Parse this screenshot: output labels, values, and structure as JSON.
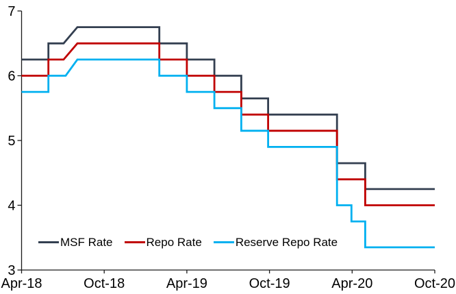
{
  "chart_data": {
    "type": "line",
    "title": "",
    "xlabel": "",
    "ylabel": "",
    "grid": false,
    "legend_position": "bottom-left-inside",
    "axis_color": "#1a1a1a",
    "text_color": "#000000",
    "background_color": "#ffffff",
    "x_axis": {
      "unit": "months since Apr-2018",
      "range": [
        0,
        30
      ],
      "ticks": [
        {
          "m": 0,
          "label": "Apr-18"
        },
        {
          "m": 6,
          "label": "Oct-18"
        },
        {
          "m": 12,
          "label": "Apr-19"
        },
        {
          "m": 18,
          "label": "Oct-19"
        },
        {
          "m": 24,
          "label": "Apr-20"
        },
        {
          "m": 30,
          "label": "Oct-20"
        }
      ]
    },
    "y_axis": {
      "range": [
        3,
        7
      ],
      "ticks": [
        7,
        6,
        5,
        4,
        3
      ]
    },
    "series": [
      {
        "name": "MSF Rate",
        "color": "#333F50",
        "points": [
          [
            0,
            6.25
          ],
          [
            1.95,
            6.25
          ],
          [
            1.95,
            6.5
          ],
          [
            3.05,
            6.5
          ],
          [
            4.05,
            6.75
          ],
          [
            10,
            6.75
          ],
          [
            10,
            6.5
          ],
          [
            12,
            6.5
          ],
          [
            12,
            6.25
          ],
          [
            14,
            6.25
          ],
          [
            14,
            6.0
          ],
          [
            15.95,
            6.0
          ],
          [
            15.95,
            5.65
          ],
          [
            17.9,
            5.65
          ],
          [
            17.9,
            5.4
          ],
          [
            22.9,
            5.4
          ],
          [
            22.9,
            4.65
          ],
          [
            24.95,
            4.65
          ],
          [
            24.95,
            4.25
          ],
          [
            30,
            4.25
          ]
        ]
      },
      {
        "name": "Repo Rate",
        "color": "#C00000",
        "points": [
          [
            0,
            6.0
          ],
          [
            1.95,
            6.0
          ],
          [
            1.95,
            6.25
          ],
          [
            3.05,
            6.25
          ],
          [
            4.05,
            6.5
          ],
          [
            10,
            6.5
          ],
          [
            10,
            6.25
          ],
          [
            12,
            6.25
          ],
          [
            12,
            6.0
          ],
          [
            14,
            6.0
          ],
          [
            14,
            5.75
          ],
          [
            15.95,
            5.75
          ],
          [
            15.95,
            5.4
          ],
          [
            17.9,
            5.4
          ],
          [
            17.9,
            5.15
          ],
          [
            22.9,
            5.15
          ],
          [
            22.9,
            4.4
          ],
          [
            24.95,
            4.4
          ],
          [
            24.95,
            4.0
          ],
          [
            30,
            4.0
          ]
        ]
      },
      {
        "name": "Reserve Repo Rate",
        "color": "#00B0F0",
        "points": [
          [
            0,
            5.75
          ],
          [
            1.95,
            5.75
          ],
          [
            1.95,
            6.0
          ],
          [
            3.2,
            6.0
          ],
          [
            4.05,
            6.25
          ],
          [
            10,
            6.25
          ],
          [
            10,
            6.0
          ],
          [
            12,
            6.0
          ],
          [
            12,
            5.75
          ],
          [
            14,
            5.75
          ],
          [
            14,
            5.5
          ],
          [
            15.95,
            5.5
          ],
          [
            15.95,
            5.15
          ],
          [
            17.9,
            5.15
          ],
          [
            17.9,
            4.9
          ],
          [
            22.9,
            4.9
          ],
          [
            22.9,
            4.0
          ],
          [
            23.95,
            4.0
          ],
          [
            23.95,
            3.75
          ],
          [
            24.95,
            3.75
          ],
          [
            24.95,
            3.35
          ],
          [
            30,
            3.35
          ]
        ]
      }
    ]
  }
}
